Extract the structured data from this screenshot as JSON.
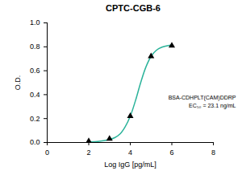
{
  "chart_data": {
    "type": "scatter",
    "title": "CPTC-CGB-6",
    "x_label": "Log IgG [pg/mL]",
    "y_label": "O.D.",
    "annotations": [
      "BSA-CDHPLT(CAM)DDRP",
      "EC₅₀ = 23.1 ng/mL"
    ],
    "xlim": [
      0,
      8
    ],
    "xticks": [
      0,
      2,
      4,
      6,
      8
    ],
    "ylim": [
      0,
      1.0
    ],
    "yticks": [
      {
        "value": 0,
        "label": "0.0"
      },
      {
        "value": 0.2,
        "label": "0.2"
      },
      {
        "value": 0.4,
        "label": "0.4"
      },
      {
        "value": 0.6,
        "label": "0.6"
      },
      {
        "value": 0.8,
        "label": "0.8"
      },
      {
        "value": 1.0,
        "label": "1.0"
      }
    ],
    "grid": false,
    "series": [
      {
        "type": "scatter",
        "marker": "triangle",
        "color": "#000000",
        "x": [
          2,
          3,
          4,
          5,
          6
        ],
        "values": [
          0.01,
          0.03,
          0.22,
          0.72,
          0.81
        ]
      },
      {
        "type": "line",
        "line_style": "solid",
        "color": "#2bb39a",
        "x": [
          2,
          2.5,
          3,
          3.25,
          3.5,
          3.75,
          4,
          4.25,
          4.5,
          4.75,
          5,
          5.25,
          5.5,
          6
        ],
        "values": [
          0.005,
          0.01,
          0.025,
          0.04,
          0.07,
          0.13,
          0.22,
          0.35,
          0.5,
          0.63,
          0.72,
          0.77,
          0.795,
          0.815
        ]
      }
    ]
  }
}
